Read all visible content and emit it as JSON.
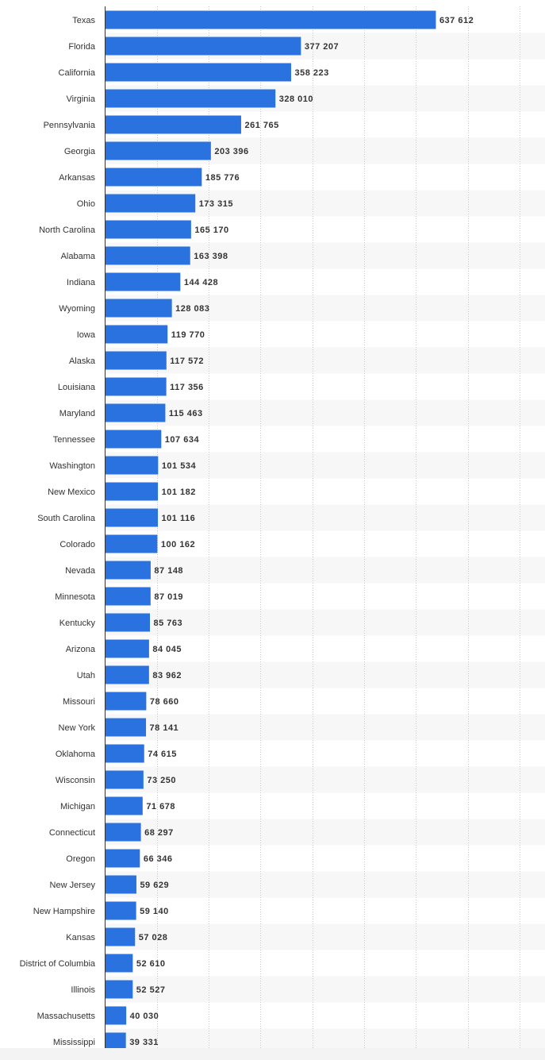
{
  "chart_data": {
    "type": "bar",
    "orientation": "horizontal",
    "bar_color": "#2a72e0",
    "categories": [
      "Texas",
      "Florida",
      "California",
      "Virginia",
      "Pennsylvania",
      "Georgia",
      "Arkansas",
      "Ohio",
      "North Carolina",
      "Alabama",
      "Indiana",
      "Wyoming",
      "Iowa",
      "Alaska",
      "Louisiana",
      "Maryland",
      "Tennessee",
      "Washington",
      "New Mexico",
      "South Carolina",
      "Colorado",
      "Nevada",
      "Minnesota",
      "Kentucky",
      "Arizona",
      "Utah",
      "Missouri",
      "New York",
      "Oklahoma",
      "Wisconsin",
      "Michigan",
      "Connecticut",
      "Oregon",
      "New Jersey",
      "New Hampshire",
      "Kansas",
      "District of Columbia",
      "Illinois",
      "Massachusetts",
      "Mississippi"
    ],
    "values": [
      637612,
      377207,
      358223,
      328010,
      261765,
      203396,
      185776,
      173315,
      165170,
      163398,
      144428,
      128083,
      119770,
      117572,
      117356,
      115463,
      107634,
      101534,
      101182,
      101116,
      100162,
      87148,
      87019,
      85763,
      84045,
      83962,
      78660,
      78141,
      74615,
      73250,
      71678,
      68297,
      66346,
      59629,
      59140,
      57028,
      52610,
      52527,
      40030,
      39331
    ],
    "value_labels": [
      "637 612",
      "377 207",
      "358 223",
      "328 010",
      "261 765",
      "203 396",
      "185 776",
      "173 315",
      "165 170",
      "163 398",
      "144 428",
      "128 083",
      "119 770",
      "117 572",
      "117 356",
      "115 463",
      "107 634",
      "101 534",
      "101 182",
      "101 116",
      "100 162",
      "87 148",
      "87 019",
      "85 763",
      "84 045",
      "83 962",
      "78 660",
      "78 141",
      "74 615",
      "73 250",
      "71 678",
      "68 297",
      "66 346",
      "59 629",
      "59 140",
      "57 028",
      "52 610",
      "52 527",
      "40 030",
      "39 331"
    ],
    "xlim": [
      0,
      800000
    ],
    "grid": true,
    "title": "",
    "xlabel": "",
    "ylabel": ""
  }
}
